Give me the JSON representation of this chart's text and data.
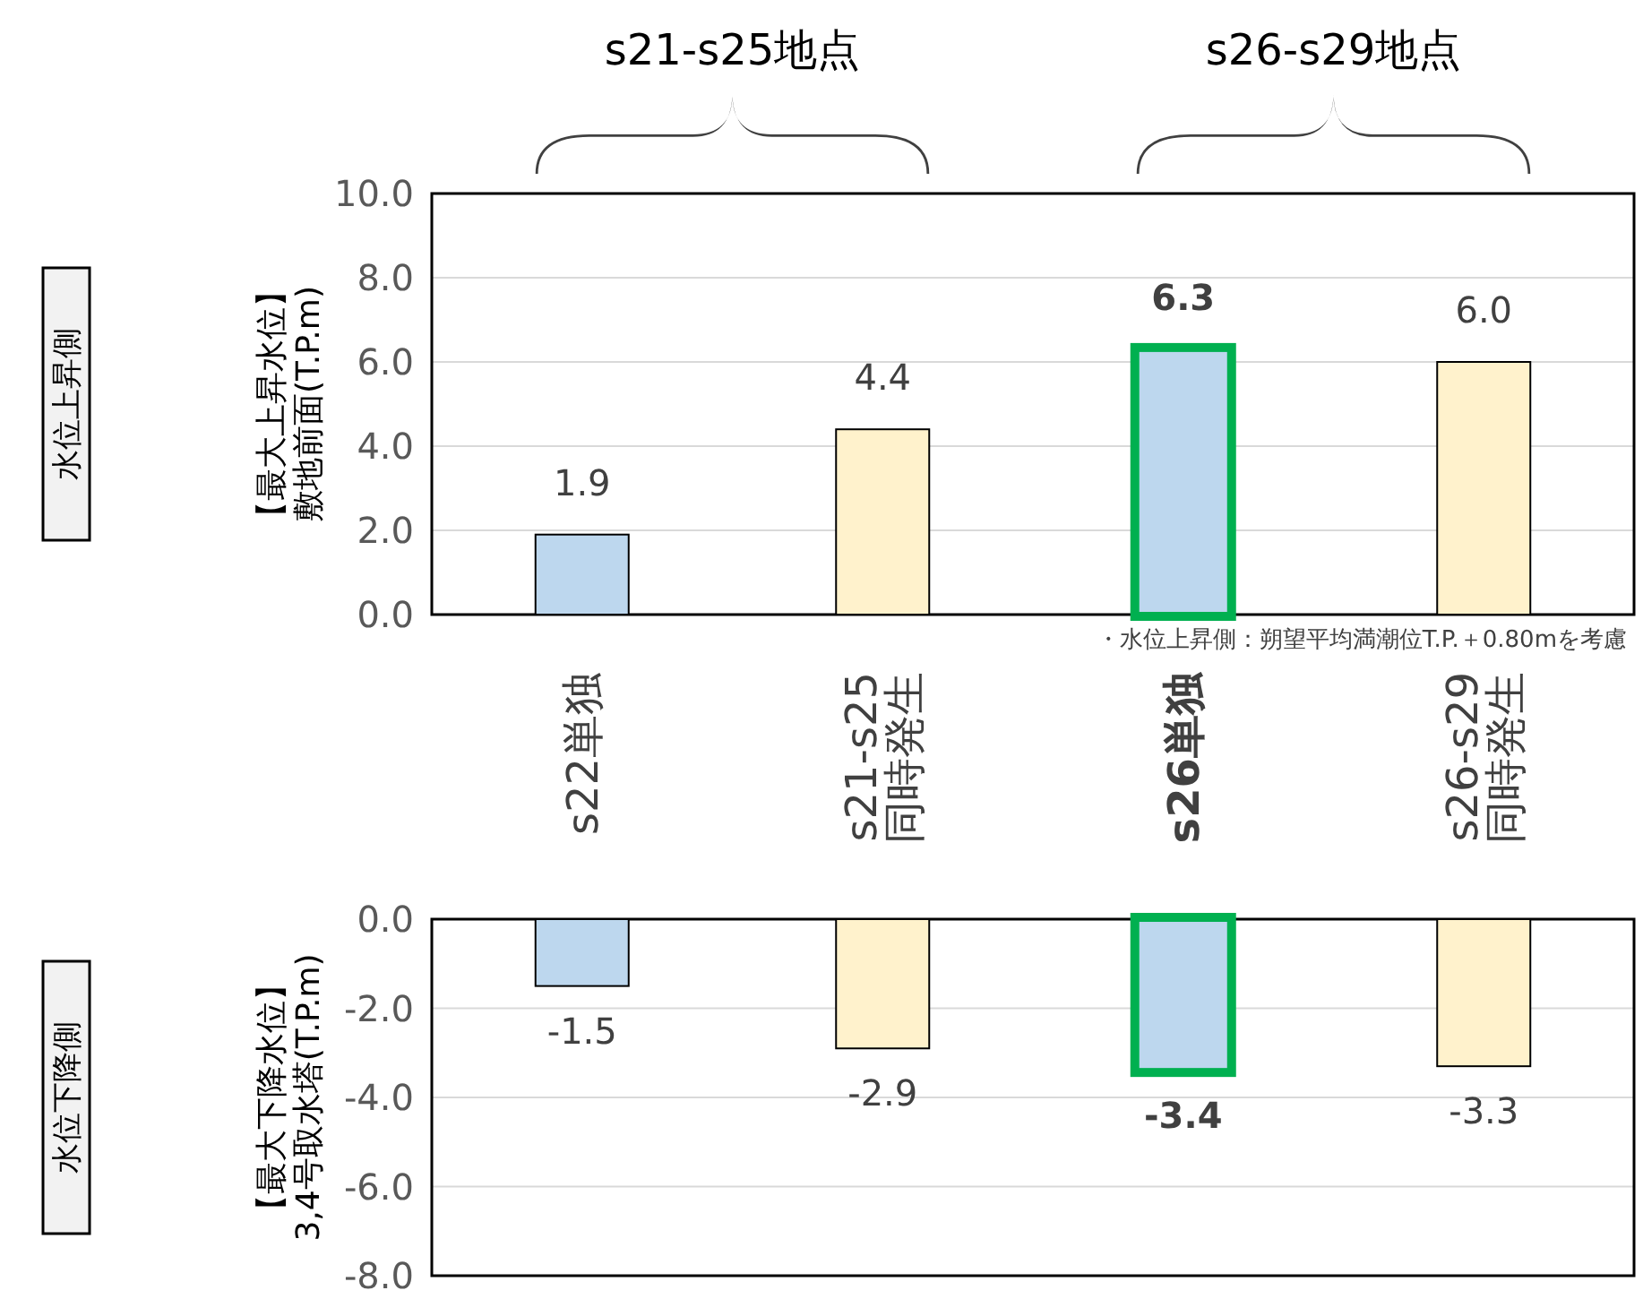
{
  "chart_data": [
    {
      "type": "bar",
      "ylabel": "【最大上昇水位】敷地前面(T.P.m)",
      "categories": [
        "s22単独",
        "s21-s25\n同時発生",
        "s26単独",
        "s26-s29\n同時発生"
      ],
      "values": [
        1.9,
        4.4,
        6.3,
        6.0
      ],
      "colors": [
        "#bdd7ee",
        "#fff2cc",
        "#bdd7ee",
        "#fff2cc"
      ],
      "value_labels": [
        "1.9",
        "4.4",
        "6.3",
        "6.0"
      ],
      "ylim": [
        0,
        10
      ],
      "yticks": [
        {
          "value": 0,
          "label": "0.0"
        },
        {
          "value": 2,
          "label": "2.0"
        },
        {
          "value": 4,
          "label": "4.0"
        },
        {
          "value": 6,
          "label": "6.0"
        },
        {
          "value": 8,
          "label": "8.0"
        },
        {
          "value": 10,
          "label": "10.0"
        }
      ],
      "grid": "y",
      "annotations": [
        "水位上昇側",
        "s21-s25地点",
        "s26-s29地点",
        "・水位上昇側：朔望平均満潮位T.P.＋0.80mを考慮"
      ]
    },
    {
      "type": "bar",
      "ylabel": "【最大下降水位】3,4号取水塔(T.P.m)",
      "values": [
        -1.5,
        -2.9,
        -3.4,
        -3.3
      ],
      "colors": [
        "#bdd7ee",
        "#fff2cc",
        "#bdd7ee",
        "#fff2cc"
      ],
      "value_labels": [
        "-1.5",
        "-2.9",
        "-3.4",
        "-3.3"
      ],
      "ylim": [
        -8,
        0
      ],
      "yticks": [
        {
          "value": -8,
          "label": "-8.0"
        },
        {
          "value": -6,
          "label": "-6.0"
        },
        {
          "value": -4,
          "label": "-4.0"
        },
        {
          "value": -2,
          "label": "-2.0"
        },
        {
          "value": 0,
          "label": "0.0"
        }
      ],
      "grid": "y",
      "annotations": [
        "水位下降側"
      ]
    }
  ]
}
